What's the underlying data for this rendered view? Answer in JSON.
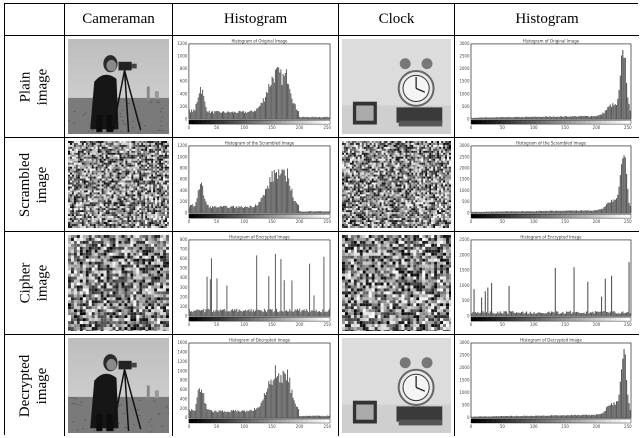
{
  "columns": [
    "",
    "Cameraman",
    "Histogram",
    "Clock",
    "Histogram"
  ],
  "rows": [
    {
      "label": [
        "Plain",
        "image"
      ],
      "cameraman_hist": {
        "title": "Histogram of Original Image",
        "type": "camera",
        "yticks": [
          "0",
          "200",
          "400",
          "600",
          "800",
          "1000",
          "1200"
        ]
      },
      "clock_hist": {
        "title": "Histogram of Original Image",
        "type": "clock",
        "yticks": [
          "0",
          "500",
          "1000",
          "1500",
          "2000",
          "2500",
          "3000"
        ]
      }
    },
    {
      "label": [
        "Scrambled",
        "image"
      ],
      "cameraman_hist": {
        "title": "Histogram of the Scrambled Image",
        "type": "camera",
        "yticks": [
          "0",
          "200",
          "400",
          "600",
          "800",
          "1000",
          "1200"
        ]
      },
      "clock_hist": {
        "title": "Histogram of the Scrambled Image",
        "type": "clock",
        "yticks": [
          "0",
          "500",
          "1000",
          "1500",
          "2000",
          "2500",
          "3000"
        ]
      }
    },
    {
      "label": [
        "Cipher",
        "image"
      ],
      "cameraman_hist": {
        "title": "Histogram of Encrypted Image",
        "type": "cipher",
        "yticks": [
          "0",
          "100",
          "200",
          "300",
          "400",
          "500",
          "600",
          "700",
          "800"
        ]
      },
      "clock_hist": {
        "title": "Histogram of Encrypted Image",
        "type": "cipher2",
        "yticks": [
          "0",
          "500",
          "1000",
          "1500",
          "2000",
          "2500"
        ]
      }
    },
    {
      "label": [
        "Decrypted",
        "image"
      ],
      "cameraman_hist": {
        "title": "Histogram of Decrypted Image",
        "type": "camera",
        "yticks": [
          "0",
          "200",
          "400",
          "600",
          "800",
          "1000",
          "1200",
          "1400",
          "1600"
        ]
      },
      "clock_hist": {
        "title": "Histogram of Decrypted Image",
        "type": "clock",
        "yticks": [
          "0",
          "500",
          "1000",
          "1500",
          "2000",
          "2500",
          "3000"
        ]
      }
    }
  ],
  "xticks": [
    "0",
    "50",
    "100",
    "150",
    "200",
    "250"
  ],
  "colors": {
    "border": "#000000",
    "bar": "#555555",
    "background": "#ffffff"
  }
}
